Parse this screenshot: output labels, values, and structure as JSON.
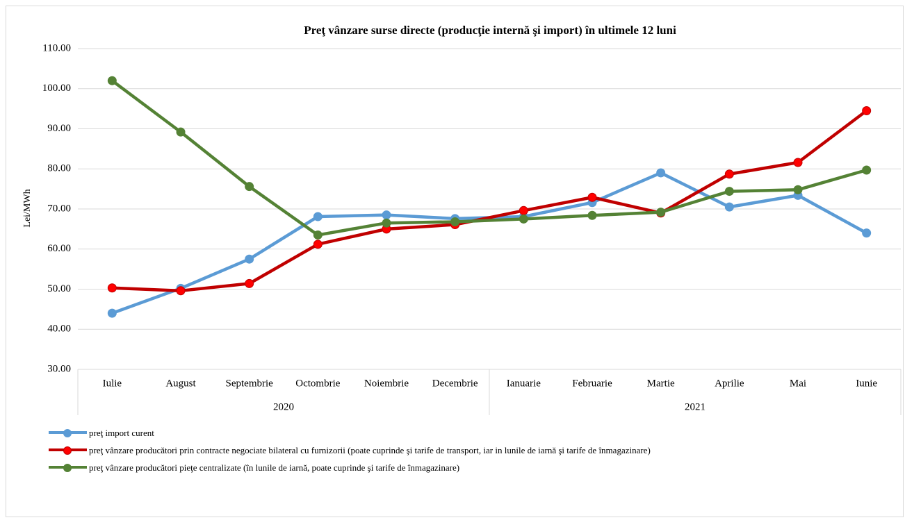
{
  "chart_data": {
    "type": "line",
    "title": "Preţ vânzare surse directe (producţie internă şi import) în ultimele 12 luni",
    "y_label": "Lei/MWh",
    "categories": [
      "Iulie",
      "August",
      "Septembrie",
      "Octombrie",
      "Noiembrie",
      "Decembrie",
      "Ianuarie",
      "Februarie",
      "Martie",
      "Aprilie",
      "Mai",
      "Iunie"
    ],
    "category_groups": [
      {
        "name": "2020",
        "count": 6
      },
      {
        "name": "2021",
        "count": 6
      }
    ],
    "series": [
      {
        "name": "preţ import curent",
        "color": "#5b9bd5",
        "marker_color": "#5b9bd5",
        "values": [
          44.0,
          50.2,
          57.5,
          68.1,
          68.5,
          67.6,
          68.1,
          71.6,
          79.0,
          70.5,
          73.4,
          64.0
        ]
      },
      {
        "name": "preţ vânzare producători prin contracte negociate bilateral cu furnizorii (poate cuprinde şi tarife de transport, iar in lunile de iarnă şi tarife de înmagazinare)",
        "color": "#c00000",
        "marker_color": "#ff0000",
        "values": [
          50.3,
          49.6,
          51.4,
          61.2,
          65.0,
          66.1,
          69.6,
          72.9,
          69.0,
          78.7,
          81.6,
          94.5
        ]
      },
      {
        "name": "preţ vânzare producători pieţe centralizate (în lunile de iarnă, poate cuprinde şi tarife de înmagazinare)",
        "color": "#548235",
        "marker_color": "#548235",
        "values": [
          102.0,
          89.2,
          75.6,
          63.5,
          66.5,
          66.8,
          67.5,
          68.4,
          69.2,
          74.4,
          74.8,
          79.7
        ]
      }
    ],
    "ylim": [
      30,
      110
    ],
    "yticks": [
      {
        "value": 30,
        "label": "30.00"
      },
      {
        "value": 40,
        "label": "40.00"
      },
      {
        "value": 50,
        "label": "50.00"
      },
      {
        "value": 60,
        "label": "60.00"
      },
      {
        "value": 70,
        "label": "70.00"
      },
      {
        "value": 80,
        "label": "80.00"
      },
      {
        "value": 90,
        "label": "90.00"
      },
      {
        "value": 100,
        "label": "100.00"
      },
      {
        "value": 110,
        "label": "110.00"
      }
    ],
    "grid": true
  }
}
